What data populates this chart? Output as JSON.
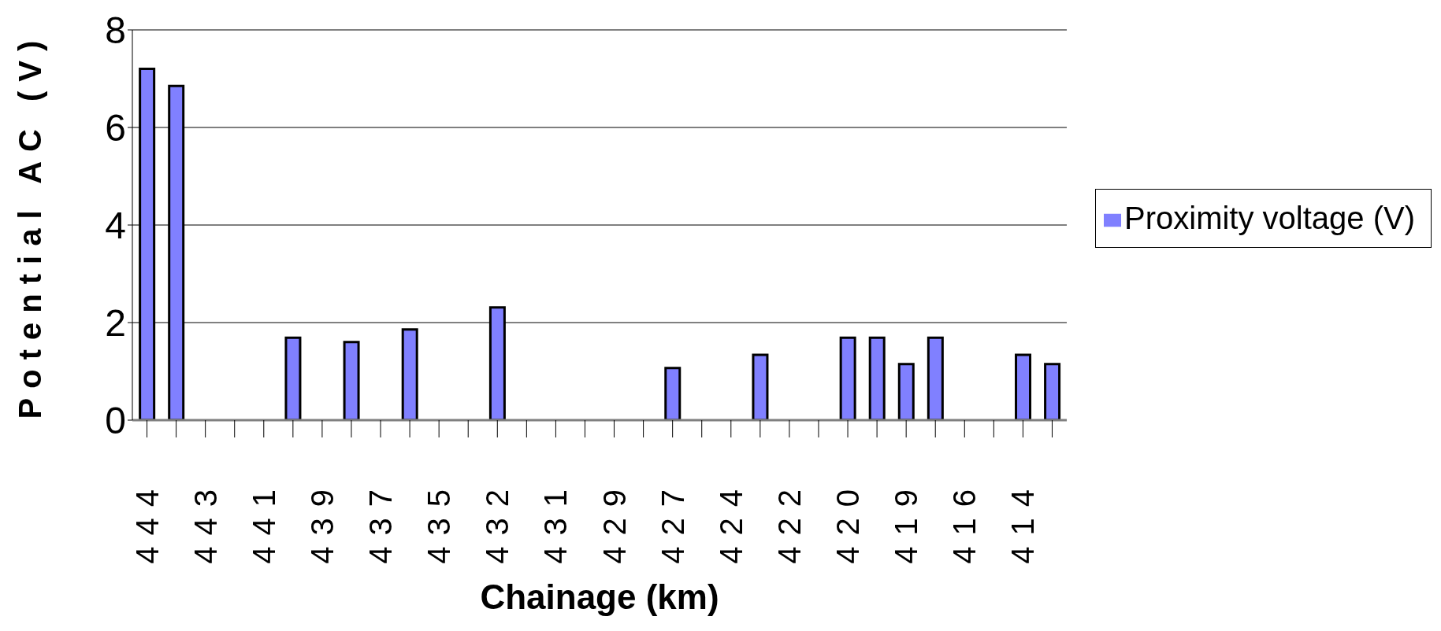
{
  "chart_data": {
    "type": "bar",
    "xlabel": "Chainage (km)",
    "ylabel": "Potential AC (V)",
    "categories": [
      "444",
      null,
      "443",
      null,
      "441",
      null,
      "439",
      null,
      "437",
      null,
      "435",
      null,
      "432",
      null,
      "431",
      null,
      "429",
      null,
      "427",
      null,
      "424",
      null,
      "422",
      null,
      "420",
      null,
      "419",
      null,
      "416",
      null,
      "414",
      null
    ],
    "series": [
      {
        "name": "Proximity voltage (V)",
        "color": "#8080ff",
        "values": [
          7.2,
          6.85,
          null,
          null,
          null,
          1.69,
          null,
          1.6,
          null,
          1.86,
          null,
          null,
          2.31,
          null,
          null,
          null,
          null,
          null,
          1.07,
          null,
          null,
          1.34,
          null,
          null,
          1.69,
          1.69,
          1.15,
          1.69,
          null,
          null,
          1.34,
          1.15
        ]
      }
    ],
    "ylim": [
      0,
      8
    ],
    "yticks": [
      0,
      2,
      4,
      6,
      8
    ],
    "grid": "y",
    "legend": "right"
  }
}
